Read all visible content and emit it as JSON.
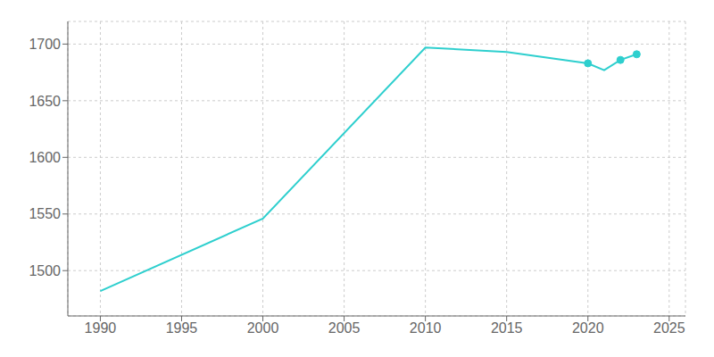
{
  "chart_data": {
    "type": "line",
    "x": [
      1990,
      2000,
      2010,
      2015,
      2020,
      2021,
      2022,
      2023
    ],
    "series": [
      {
        "type": "line",
        "color": "#2ECFCE",
        "values": [
          1482,
          1546,
          1697,
          1693,
          1683,
          1677,
          1686,
          1691
        ]
      },
      {
        "type": "scatter",
        "marker": "circle",
        "color": "#2ECFCE",
        "values": [
          null,
          null,
          null,
          null,
          1683,
          null,
          1686,
          1691
        ]
      }
    ],
    "xlim": [
      1988,
      2026
    ],
    "ylim": [
      1460,
      1720
    ],
    "xticks": [
      1990,
      1995,
      2000,
      2005,
      2010,
      2015,
      2020,
      2025
    ],
    "yticks": [
      1500,
      1550,
      1600,
      1650,
      1700
    ],
    "grid": true
  }
}
